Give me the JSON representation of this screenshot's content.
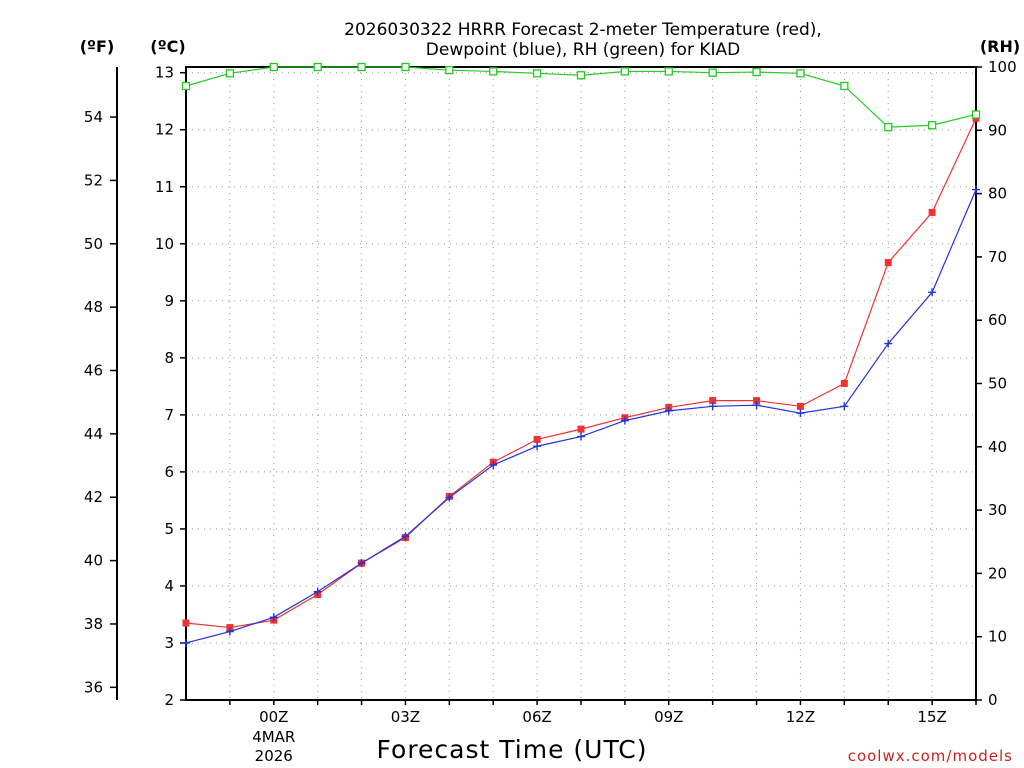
{
  "chart_data": {
    "type": "line",
    "title": [
      "2026030322 HRRR Forecast 2-meter Temperature (red),",
      "Dewpoint (blue), RH (green) for KIAD"
    ],
    "xlabel": "Forecast Time (UTC)",
    "left_unit_f": "(ºF)",
    "left_unit_c": "(ºC)",
    "right_unit": "(RH)",
    "x_hours": [
      -1,
      0,
      1,
      2,
      3,
      4,
      5,
      6,
      7,
      8,
      9,
      10,
      11,
      12,
      13,
      14,
      15,
      16,
      17
    ],
    "x_ticks": [
      {
        "hour": 0,
        "label": "00Z",
        "sub1": "4MAR",
        "sub2": "2026"
      },
      {
        "hour": 3,
        "label": "03Z"
      },
      {
        "hour": 6,
        "label": "06Z"
      },
      {
        "hour": 9,
        "label": "09Z"
      },
      {
        "hour": 12,
        "label": "12Z"
      },
      {
        "hour": 15,
        "label": "15Z"
      }
    ],
    "x_range": [
      -2,
      16
    ],
    "celsius_axis": {
      "range": [
        2,
        13.1
      ],
      "ticks": [
        2,
        3,
        4,
        5,
        6,
        7,
        8,
        9,
        10,
        11,
        12,
        13
      ]
    },
    "fahrenheit_axis": {
      "ticks": [
        36,
        38,
        40,
        42,
        44,
        46,
        48,
        50,
        52,
        54
      ]
    },
    "rh_axis": {
      "range": [
        0,
        100
      ],
      "ticks": [
        0,
        10,
        20,
        30,
        40,
        50,
        60,
        70,
        80,
        90,
        100
      ]
    },
    "series": [
      {
        "name": "Temperature",
        "color": "#ee3333",
        "marker": "filled-square",
        "x": [
          -2,
          -1,
          0,
          1,
          2,
          3,
          4,
          5,
          6,
          7,
          8,
          9,
          10,
          11,
          12,
          13,
          14,
          15,
          16
        ],
        "values": [
          3.35,
          3.27,
          3.4,
          3.85,
          4.4,
          4.85,
          5.57,
          6.17,
          6.57,
          6.75,
          6.95,
          7.13,
          7.25,
          7.25,
          7.15,
          7.55,
          9.67,
          10.55,
          12.2
        ]
      },
      {
        "name": "Dewpoint",
        "color": "#2233dd",
        "marker": "plus",
        "x": [
          -2,
          -1,
          0,
          1,
          2,
          3,
          4,
          5,
          6,
          7,
          8,
          9,
          10,
          11,
          12,
          13,
          14,
          15,
          16
        ],
        "values": [
          3.0,
          3.2,
          3.45,
          3.9,
          4.4,
          4.87,
          5.55,
          6.12,
          6.45,
          6.62,
          6.9,
          7.07,
          7.15,
          7.17,
          7.03,
          7.15,
          8.25,
          9.15,
          10.95
        ]
      },
      {
        "name": "RH",
        "color": "#22cc22",
        "marker": "open-square",
        "x": [
          -2,
          -1,
          0,
          1,
          2,
          3,
          4,
          5,
          6,
          7,
          8,
          9,
          10,
          11,
          12,
          13,
          14,
          15,
          16
        ],
        "values": [
          97,
          99,
          100,
          100,
          100,
          100,
          99.5,
          99.3,
          99,
          98.7,
          99.3,
          99.3,
          99.1,
          99.2,
          99,
          97,
          90.5,
          90.8,
          92.5
        ]
      }
    ],
    "grid": true
  },
  "credit": "coolwx.com/models"
}
